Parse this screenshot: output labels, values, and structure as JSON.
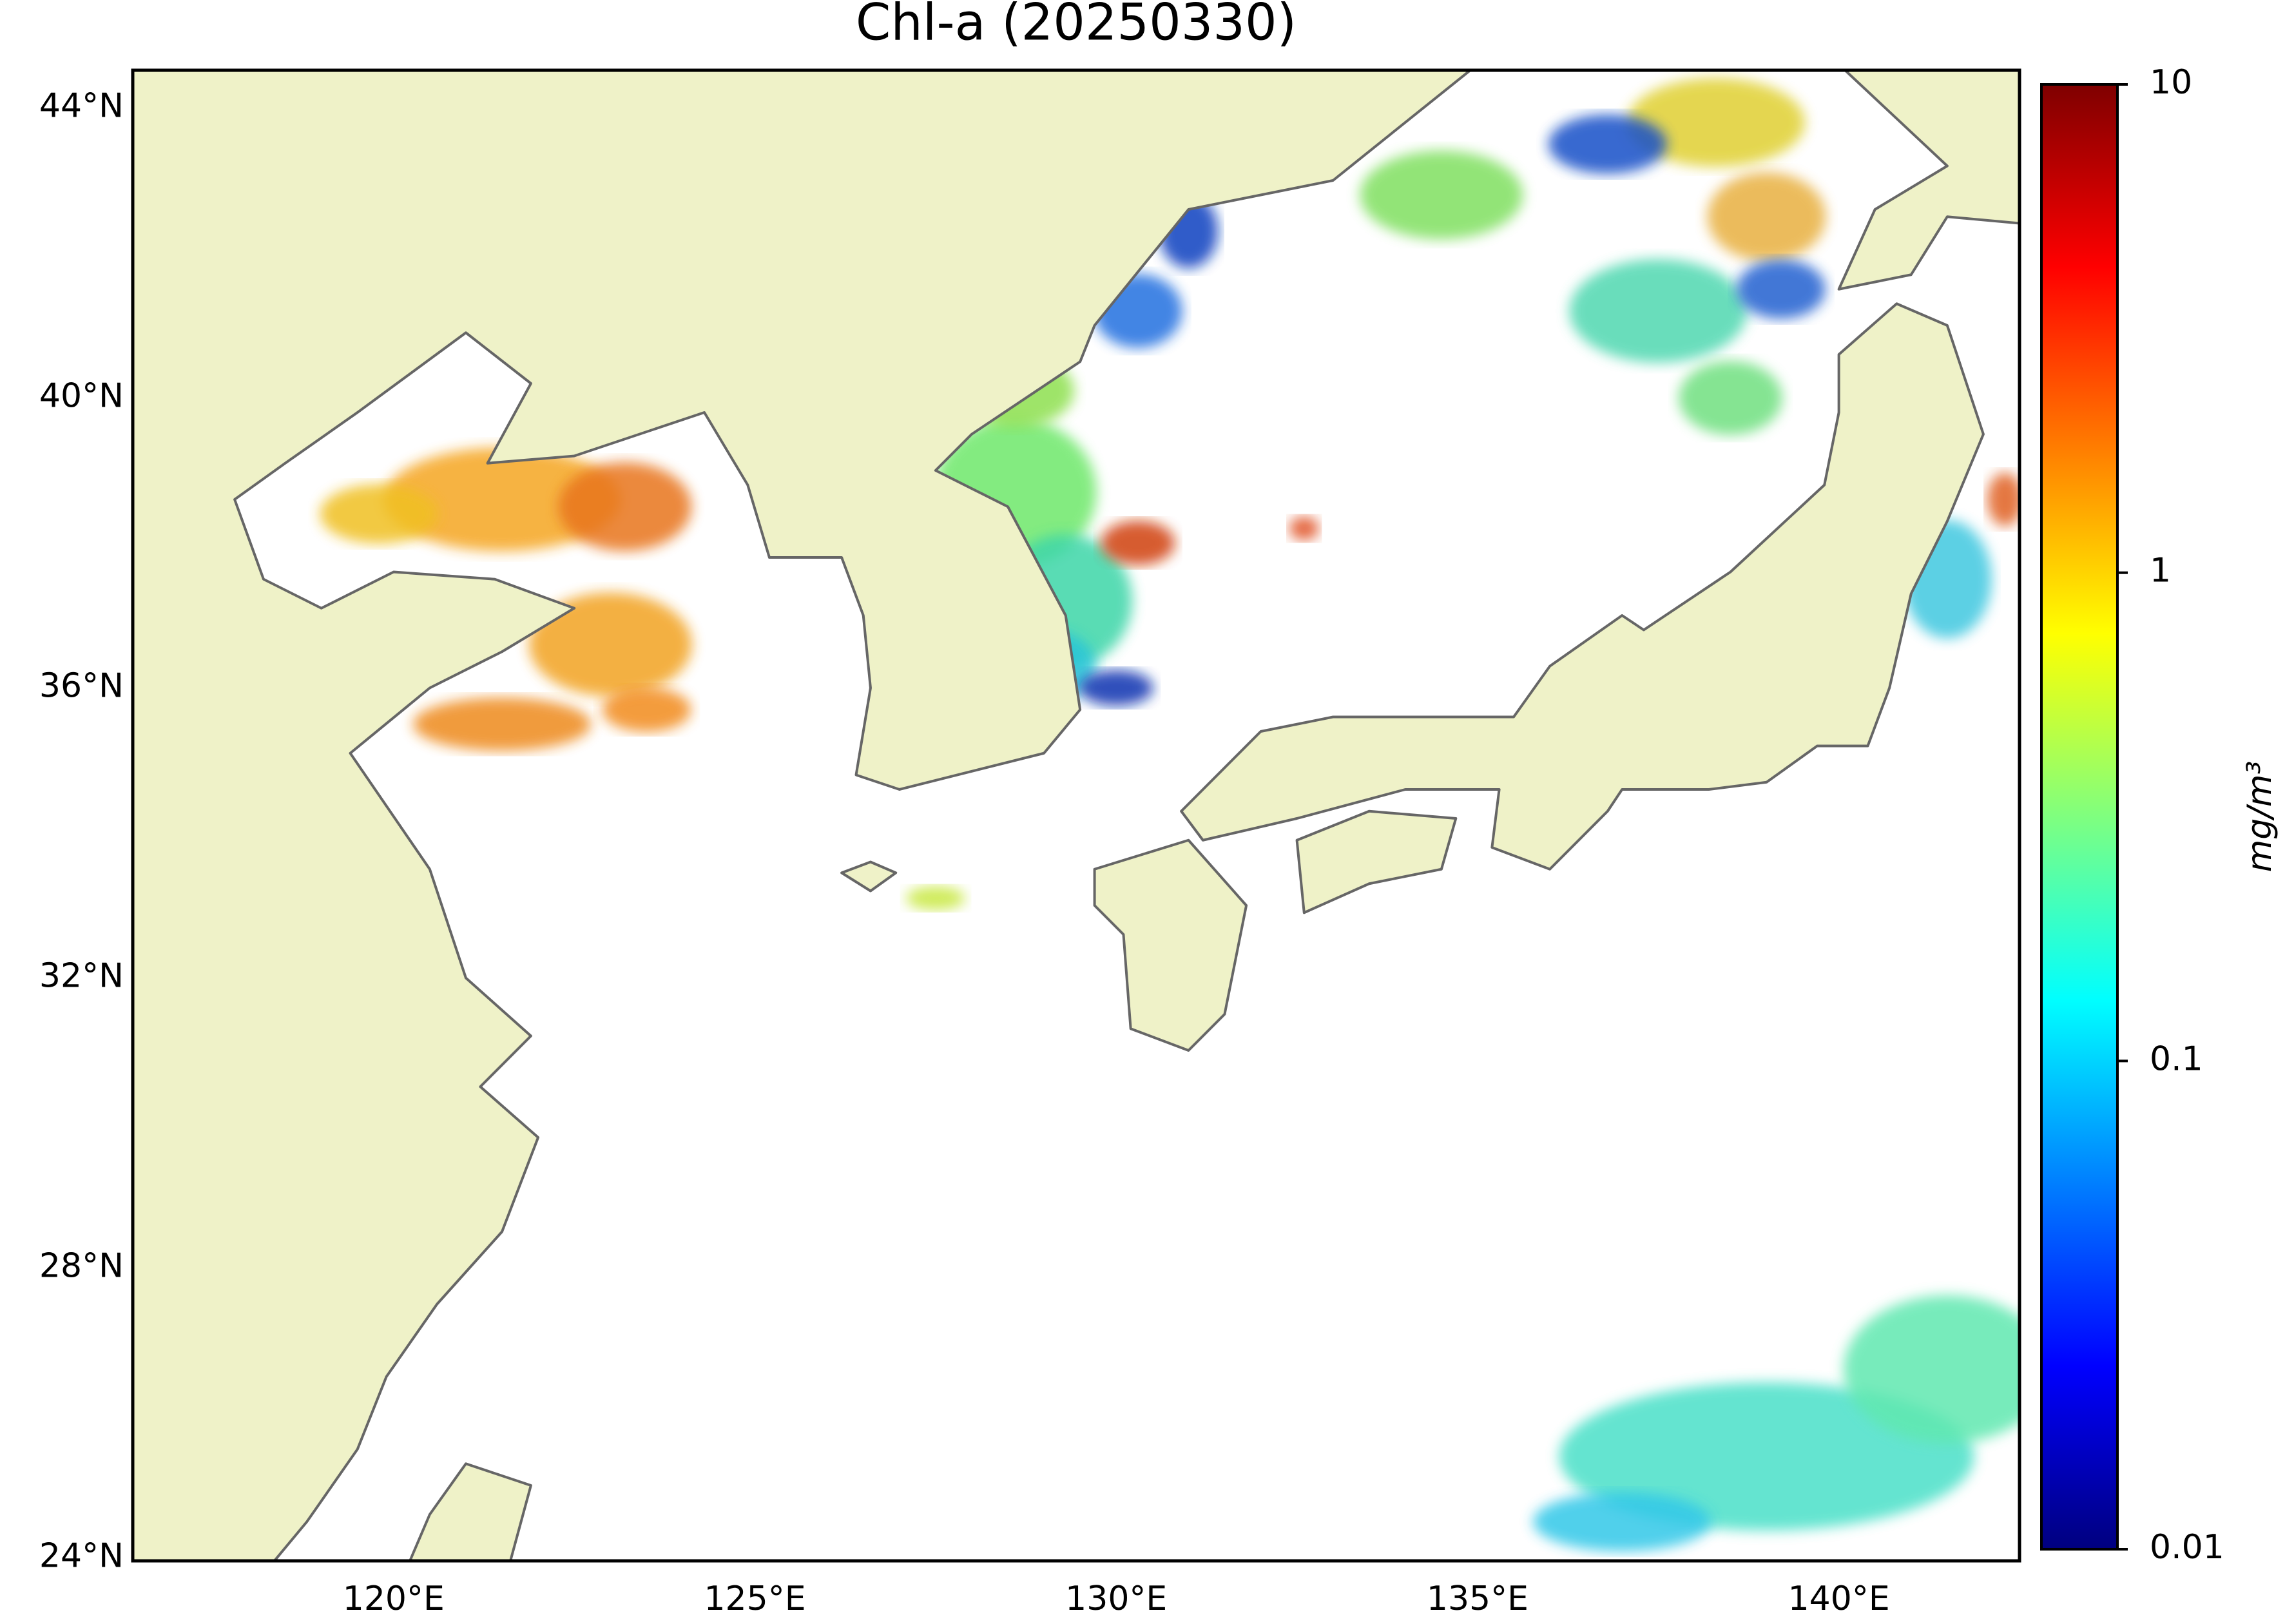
{
  "chart_data": {
    "type": "map",
    "title": "Chl-a (20250330)",
    "xlim": [
      116.39,
      142.5
    ],
    "ylim": [
      23.96,
      44.52
    ],
    "xticks": [
      {
        "value": 120,
        "label": "120°E"
      },
      {
        "value": 125,
        "label": "125°E"
      },
      {
        "value": 130,
        "label": "130°E"
      },
      {
        "value": 135,
        "label": "135°E"
      },
      {
        "value": 140,
        "label": "140°E"
      }
    ],
    "yticks": [
      {
        "value": 24,
        "label": "24°N"
      },
      {
        "value": 28,
        "label": "28°N"
      },
      {
        "value": 32,
        "label": "32°N"
      },
      {
        "value": 36,
        "label": "36°N"
      },
      {
        "value": 40,
        "label": "40°N"
      },
      {
        "value": 44,
        "label": "44°N"
      }
    ],
    "land_color": "#eff2c8",
    "colorbar": {
      "label": "mg/m³",
      "lim": [
        0.01,
        10
      ],
      "ticks": [
        0.01,
        0.1,
        1,
        10
      ],
      "log": true,
      "colormap": "jet"
    }
  }
}
